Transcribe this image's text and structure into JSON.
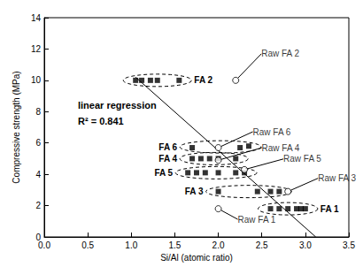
{
  "chart_data": {
    "type": "scatter",
    "xlabel": "Si/Al (atomic ratio)",
    "ylabel": "Compressive strength (MPa)",
    "xlim": [
      0,
      3.5
    ],
    "ylim": [
      0,
      14
    ],
    "xticks": [
      {
        "value": 0,
        "label": "0.0"
      },
      {
        "value": 0.5,
        "label": "0.5"
      },
      {
        "value": 1,
        "label": "1.0"
      },
      {
        "value": 1.5,
        "label": "1.5"
      },
      {
        "value": 2,
        "label": "2.0"
      },
      {
        "value": 2.5,
        "label": "2.5"
      },
      {
        "value": 3,
        "label": "3.0"
      },
      {
        "value": 3.5,
        "label": "3.5"
      }
    ],
    "yticks": [
      0,
      2,
      4,
      6,
      8,
      10,
      12,
      14
    ],
    "grid": false,
    "annotations": [
      "linear regression",
      "R² = 0.841"
    ],
    "series": [
      {
        "name": "FA 2",
        "type": "scatter",
        "marker": "square",
        "color": "#000000",
        "values": [
          [
            1.05,
            10
          ],
          [
            1.12,
            10
          ],
          [
            1.22,
            10
          ],
          [
            1.3,
            10
          ],
          [
            1.55,
            10
          ]
        ]
      },
      {
        "name": "FA 6",
        "type": "scatter",
        "marker": "square",
        "color": "#000000",
        "values": [
          [
            1.7,
            5.7
          ],
          [
            2.25,
            5.7
          ],
          [
            2.35,
            5.8
          ]
        ]
      },
      {
        "name": "FA 4",
        "type": "scatter",
        "marker": "square",
        "color": "#000000",
        "values": [
          [
            1.7,
            5.0
          ],
          [
            1.8,
            5.0
          ],
          [
            1.9,
            5.0
          ],
          [
            2.0,
            5.0
          ],
          [
            2.2,
            5.0
          ]
        ]
      },
      {
        "name": "FA 5",
        "type": "scatter",
        "marker": "square",
        "color": "#000000",
        "values": [
          [
            1.65,
            4.1
          ],
          [
            1.75,
            4.1
          ],
          [
            1.85,
            4.1
          ],
          [
            2.0,
            4.1
          ],
          [
            2.2,
            4.1
          ],
          [
            2.3,
            4.1
          ]
        ]
      },
      {
        "name": "FA 3",
        "type": "scatter",
        "marker": "square",
        "color": "#000000",
        "values": [
          [
            2.0,
            2.9
          ],
          [
            2.45,
            2.9
          ],
          [
            2.6,
            2.9
          ],
          [
            2.7,
            2.9
          ]
        ]
      },
      {
        "name": "FA 1",
        "type": "scatter",
        "marker": "square",
        "color": "#000000",
        "values": [
          [
            2.6,
            1.8
          ],
          [
            2.7,
            1.8
          ],
          [
            2.8,
            1.8
          ],
          [
            2.9,
            1.8
          ],
          [
            2.95,
            1.8
          ],
          [
            3.0,
            1.8
          ]
        ]
      },
      {
        "type": "scatter",
        "marker": "open_circle",
        "color": "#000000",
        "values": [
          [
            2.2,
            10
          ],
          [
            2.0,
            5.7
          ],
          [
            2.0,
            4.9
          ],
          [
            2.3,
            4.3
          ],
          [
            2.8,
            2.9
          ],
          [
            2.0,
            1.8
          ]
        ],
        "labels": [
          "Raw FA 2",
          "Raw FA 6",
          "Raw FA 4",
          "Raw FA 5",
          "Raw FA 3",
          "Raw FA 1"
        ]
      },
      {
        "type": "line",
        "line_style": "solid",
        "color": "#000000",
        "values": [
          [
            1.05,
            10.2
          ],
          [
            3.12,
            0
          ]
        ]
      }
    ]
  }
}
